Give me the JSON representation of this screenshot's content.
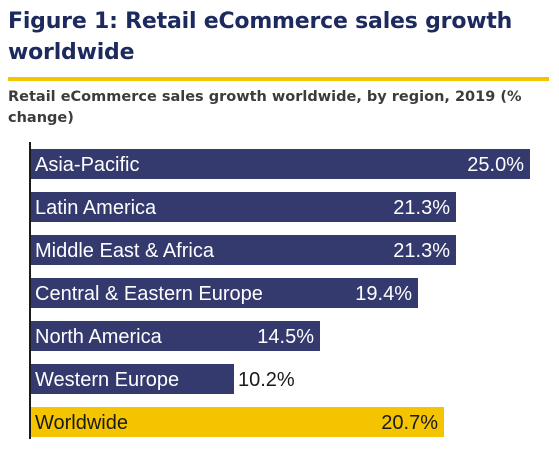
{
  "title": "Figure 1: Retail eCommerce sales growth worldwide",
  "subtitle": "Retail eCommerce sales growth worldwide, by region, 2019 (% change)",
  "colors": {
    "title": "#1d2a5e",
    "rule": "#f5c400",
    "bar_region": "#353a6e",
    "bar_worldwide": "#f5c400",
    "label_on_dark": "#ffffff",
    "label_on_light": "#1a1a1a",
    "axis": "#1a1a1a"
  },
  "chart_data": {
    "type": "bar",
    "orientation": "horizontal",
    "title": "Figure 1: Retail eCommerce sales growth worldwide",
    "subtitle": "Retail eCommerce sales growth worldwide, by region, 2019 (% change)",
    "categories": [
      "Asia-Pacific",
      "Latin America",
      "Middle East & Africa",
      "Central & Eastern Europe",
      "North America",
      "Western Europe",
      "Worldwide"
    ],
    "values": [
      25.0,
      21.3,
      21.3,
      19.4,
      14.5,
      10.2,
      20.7
    ],
    "value_labels": [
      "25.0%",
      "21.3%",
      "21.3%",
      "19.4%",
      "14.5%",
      "10.2%",
      "20.7%"
    ],
    "highlight": "Worldwide",
    "xlim": [
      0,
      25
    ],
    "grid": false,
    "legend": "none"
  }
}
